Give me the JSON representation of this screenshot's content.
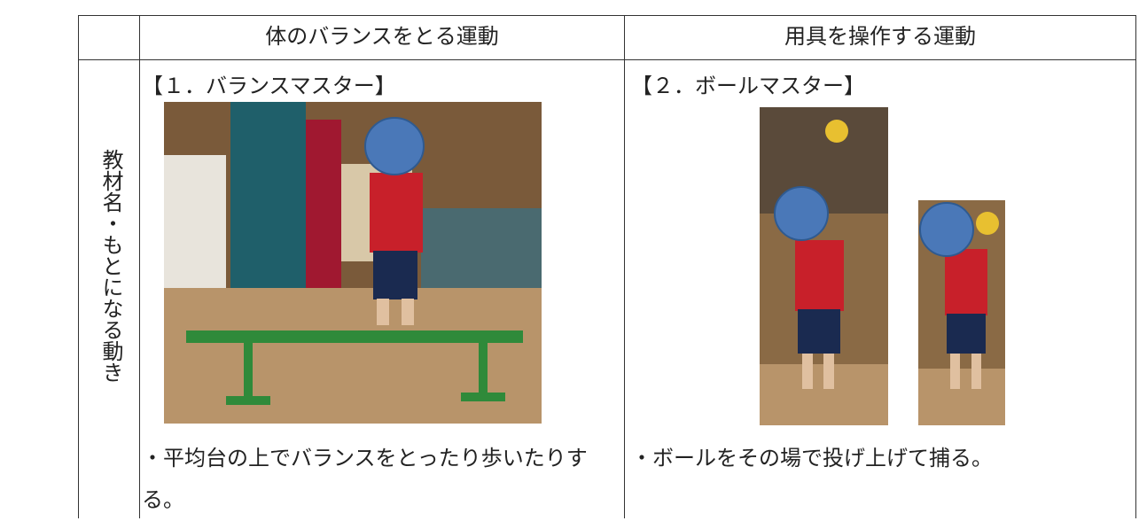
{
  "table": {
    "header": [
      "体のバランスをとる運動",
      "用具を操作する運動"
    ],
    "row_label": "教材名・もとになる動き",
    "cells": [
      {
        "title": "【１．バランスマスター】",
        "caption": "・平均台の上でバランスをとったり歩いたりする。"
      },
      {
        "title": "【２．ボールマスター】",
        "caption": "・ボールをその場で投げ上げて捕る。"
      }
    ]
  }
}
